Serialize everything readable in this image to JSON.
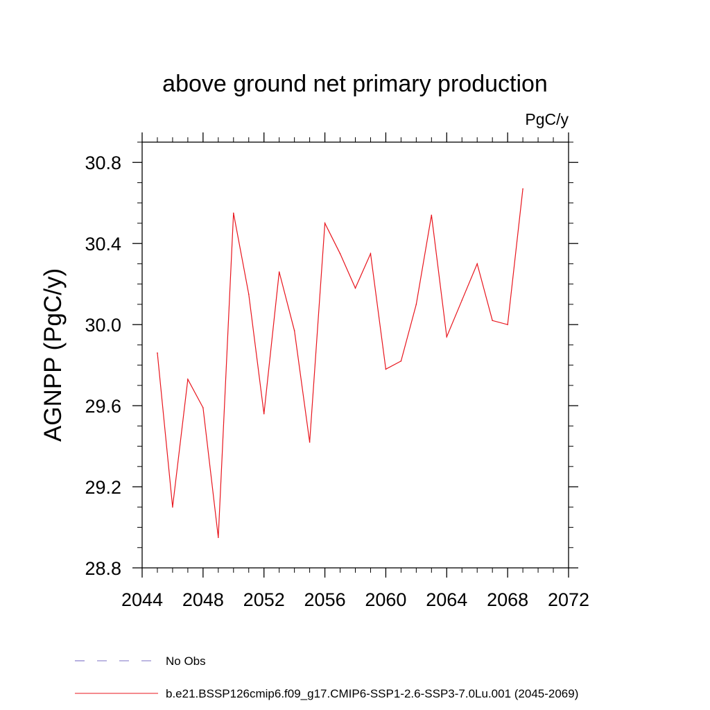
{
  "chart_data": {
    "type": "line",
    "title": "above ground net primary production",
    "units_label": "PgC/y",
    "ylabel": "AGNPP  (PgC/y)",
    "xlabel": "",
    "xlim": [
      2044,
      2072
    ],
    "ylim": [
      28.8,
      30.9
    ],
    "x_ticks": [
      "2044",
      "2048",
      "2052",
      "2056",
      "2060",
      "2064",
      "2068",
      "2072"
    ],
    "y_ticks": [
      "28.8",
      "29.2",
      "29.6",
      "30.0",
      "30.4",
      "30.8"
    ],
    "grid": false,
    "legend_position": "bottom",
    "series": [
      {
        "name": "b.e21.BSSP126cmip6.f09_g17.CMIP6-SSP1-2.6-SSP3-7.0Lu.001 (2045-2069)",
        "color": "#e8141c",
        "x": [
          2045,
          2046,
          2047,
          2048,
          2049,
          2050,
          2051,
          2052,
          2053,
          2054,
          2055,
          2056,
          2057,
          2058,
          2059,
          2060,
          2061,
          2062,
          2063,
          2064,
          2065,
          2066,
          2067,
          2068,
          2069
        ],
        "y": [
          29.86,
          29.1,
          29.73,
          29.59,
          28.95,
          30.55,
          30.15,
          29.56,
          30.26,
          29.97,
          29.42,
          30.5,
          30.35,
          30.18,
          30.35,
          29.78,
          29.82,
          30.1,
          30.54,
          29.94,
          30.12,
          30.3,
          30.02,
          30.0,
          30.67
        ]
      }
    ],
    "legend": [
      {
        "label": "No Obs",
        "color": "#7b6fc6",
        "dash": true
      },
      {
        "label": "b.e21.BSSP126cmip6.f09_g17.CMIP6-SSP1-2.6-SSP3-7.0Lu.001 (2045-2069)",
        "color": "#e8141c",
        "dash": false
      }
    ]
  }
}
